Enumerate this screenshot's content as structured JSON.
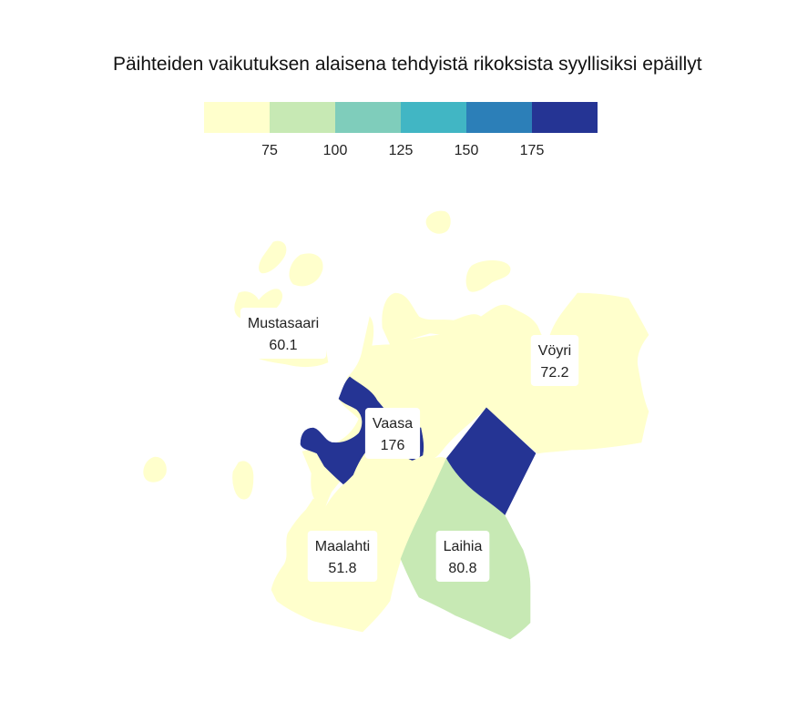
{
  "title": "Päihteiden vaikutuksen alaisena tehdyistä rikoksista syyllisiksi epäillyt",
  "legend": {
    "breaks": [
      75,
      100,
      125,
      150,
      175
    ],
    "colors": [
      "#ffffcc",
      "#c7e9b4",
      "#7fcdbb",
      "#41b6c4",
      "#2c7fb8",
      "#253494"
    ]
  },
  "regions": [
    {
      "id": "mustasaari",
      "name": "Mustasaari",
      "value": "60.1"
    },
    {
      "id": "voyri",
      "name": "Vöyri",
      "value": "72.2"
    },
    {
      "id": "vaasa",
      "name": "Vaasa",
      "value": "176"
    },
    {
      "id": "maalahti",
      "name": "Maalahti",
      "value": "51.8"
    },
    {
      "id": "laihia",
      "name": "Laihia",
      "value": "80.8"
    }
  ]
}
